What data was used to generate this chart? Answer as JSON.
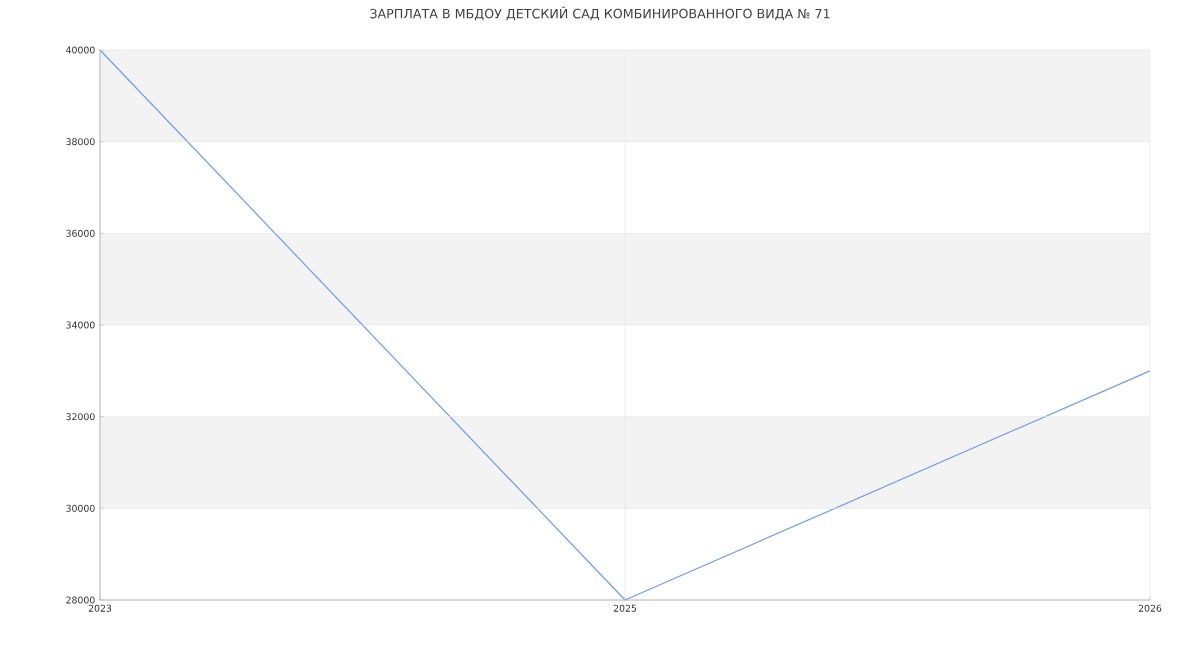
{
  "chart_data": {
    "type": "line",
    "title": "ЗАРПЛАТА В МБДОУ ДЕТСКИЙ САД КОМБИНИРОВАННОГО ВИДА № 71",
    "categories": [
      "2023",
      "2025",
      "2026"
    ],
    "series": [
      {
        "color": "#6d9bf5",
        "values": [
          40000,
          28000,
          33000
        ]
      }
    ],
    "ylim": [
      28000,
      40000
    ],
    "yticks": [
      28000,
      30000,
      32000,
      34000,
      36000,
      38000,
      40000
    ],
    "bands": [
      {
        "axis": "y",
        "from": 30000,
        "to": 32000,
        "color": "#f3f3f3"
      },
      {
        "axis": "y",
        "from": 34000,
        "to": 36000,
        "color": "#f3f3f3"
      },
      {
        "axis": "y",
        "from": 38000,
        "to": 40000,
        "color": "#f3f3f3"
      }
    ],
    "grid": true,
    "marker": "none",
    "line_style": "solid"
  }
}
